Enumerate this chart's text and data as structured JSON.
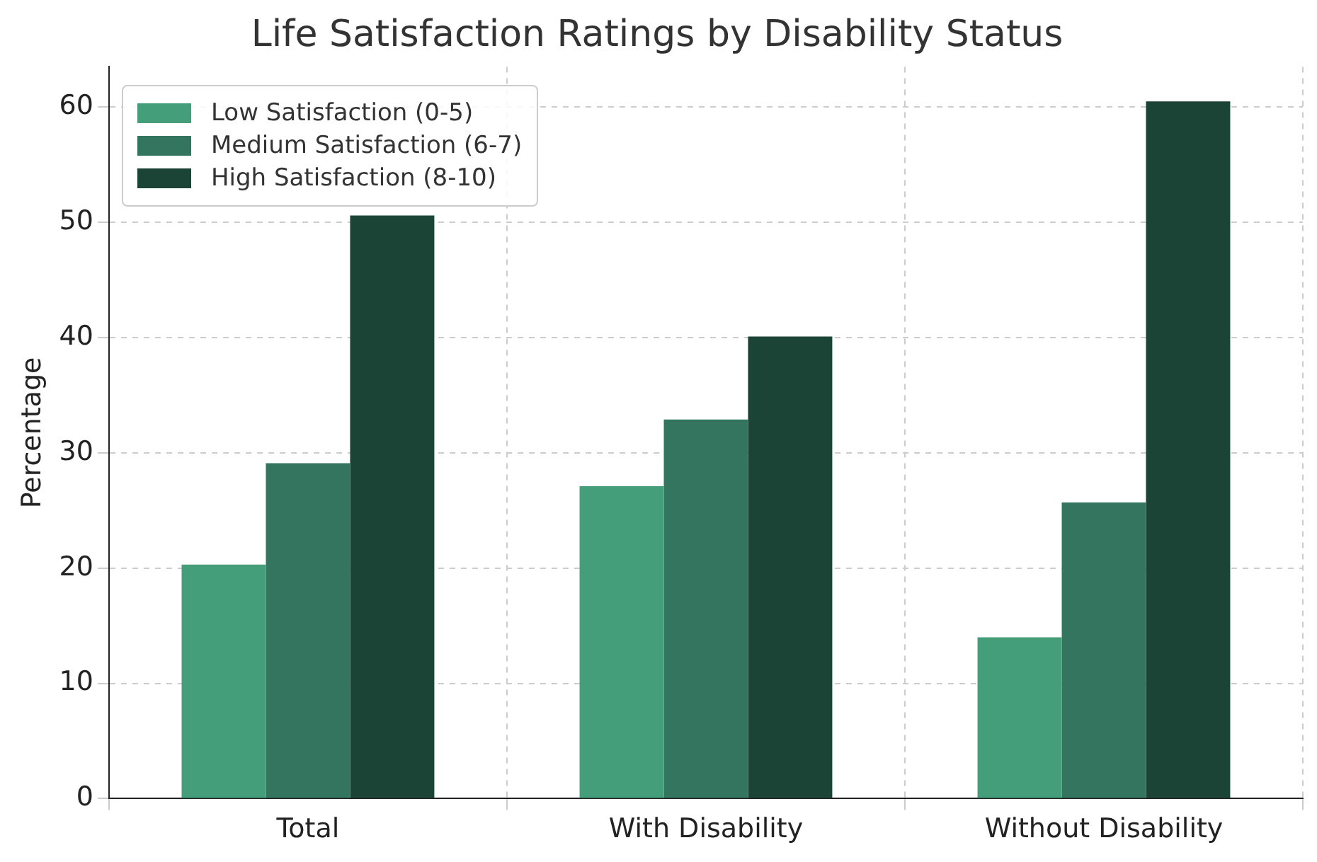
{
  "chart_data": {
    "type": "bar",
    "title": "Life Satisfaction Ratings by Disability Status",
    "ylabel": "Percentage",
    "categories": [
      "Total",
      "With Disability",
      "Without Disability"
    ],
    "series": [
      {
        "name": "Low Satisfaction (0-5)",
        "color": "#459e7a",
        "values": [
          20.3,
          27.1,
          14.0
        ]
      },
      {
        "name": "Medium Satisfaction (6-7)",
        "color": "#347560",
        "values": [
          29.1,
          32.9,
          25.7
        ]
      },
      {
        "name": "High Satisfaction (8-10)",
        "color": "#1c4436",
        "values": [
          50.6,
          40.1,
          60.5
        ]
      }
    ],
    "ylim": [
      0,
      63.5
    ],
    "yticks": [
      0,
      10,
      20,
      30,
      40,
      50,
      60
    ],
    "grid": true,
    "legend": "top left",
    "line_style": "dashed"
  }
}
